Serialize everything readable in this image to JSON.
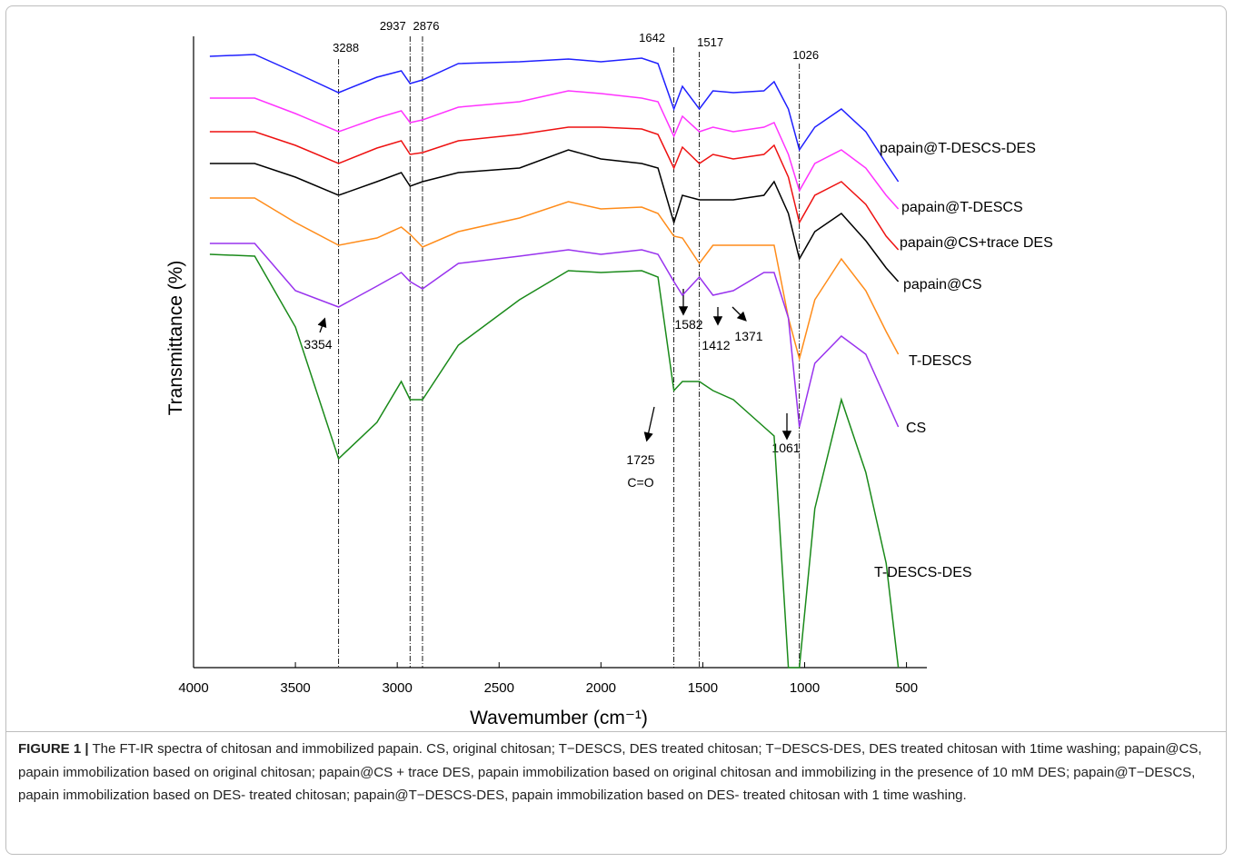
{
  "chart_data": {
    "type": "line",
    "title": null,
    "x_label": "Wavemumber (cm⁻¹)",
    "y_label": "Transmittance (%)",
    "xlim": [
      4000,
      400
    ],
    "ylim": [
      0,
      700
    ],
    "xticks": [
      4000,
      3500,
      3000,
      2500,
      2000,
      1500,
      1000,
      500
    ],
    "x": [
      3920,
      3700,
      3500,
      3288,
      3100,
      2980,
      2937,
      2876,
      2700,
      2400,
      2160,
      2000,
      1800,
      1720,
      1642,
      1600,
      1517,
      1450,
      1350,
      1200,
      1150,
      1080,
      1026,
      950,
      820,
      700,
      600,
      540
    ],
    "series": [
      {
        "name": "papain@T-DESCS-DES",
        "color": "#2020ff",
        "values": [
          673,
          675,
          655,
          633,
          650,
          657,
          643,
          647,
          665,
          667,
          670,
          667,
          671,
          665,
          615,
          640,
          615,
          635,
          633,
          635,
          645,
          615,
          570,
          595,
          615,
          590,
          555,
          535
        ]
      },
      {
        "name": "papain@T-DESCS",
        "color": "#ff33ff",
        "values": [
          627,
          627,
          610,
          590,
          605,
          613,
          600,
          603,
          617,
          623,
          635,
          632,
          627,
          623,
          585,
          607,
          590,
          595,
          590,
          595,
          600,
          565,
          525,
          555,
          570,
          550,
          520,
          505
        ]
      },
      {
        "name": "papain@CS+trace DES",
        "color": "#ee1111",
        "values": [
          590,
          590,
          575,
          555,
          572,
          580,
          565,
          567,
          580,
          587,
          595,
          595,
          593,
          587,
          550,
          573,
          555,
          565,
          560,
          565,
          575,
          540,
          490,
          520,
          535,
          510,
          475,
          460
        ]
      },
      {
        "name": "papain@CS",
        "color": "#000000",
        "values": [
          555,
          555,
          540,
          520,
          535,
          545,
          530,
          535,
          545,
          550,
          570,
          560,
          555,
          550,
          490,
          520,
          515,
          515,
          515,
          520,
          535,
          500,
          450,
          480,
          500,
          470,
          440,
          425
        ]
      },
      {
        "name": "T-DESCS",
        "color": "#ff8c1a",
        "values": [
          517,
          517,
          490,
          465,
          473,
          485,
          477,
          463,
          480,
          495,
          513,
          505,
          507,
          500,
          475,
          473,
          445,
          465,
          465,
          465,
          465,
          385,
          340,
          405,
          450,
          415,
          370,
          345
        ]
      },
      {
        "name": "CS",
        "color": "#9933ee",
        "values": [
          467,
          467,
          415,
          397,
          420,
          435,
          425,
          417,
          445,
          453,
          460,
          455,
          460,
          455,
          425,
          410,
          430,
          410,
          415,
          435,
          435,
          385,
          265,
          335,
          365,
          345,
          295,
          265
        ]
      },
      {
        "name": "T-DESCS-DES",
        "color": "#1a8a1a",
        "values": [
          455,
          453,
          375,
          230,
          270,
          315,
          295,
          295,
          355,
          405,
          437,
          435,
          437,
          430,
          305,
          315,
          315,
          305,
          295,
          265,
          255,
          0,
          0,
          175,
          295,
          215,
          115,
          0
        ]
      }
    ],
    "reference_lines": [
      3288,
      2937,
      2876,
      1642,
      1517,
      1026
    ],
    "annotations": [
      "3354",
      "1582",
      "1412",
      "1371",
      "1061",
      "1725",
      "C=O"
    ]
  },
  "caption": {
    "label": "FIGURE 1 |",
    "text": " The FT-IR spectra of chitosan and immobilized papain. CS, original chitosan; T−DESCS, DES treated chitosan; T−DESCS-DES, DES treated chitosan with 1time washing; papain@CS, papain immobilization based on original chitosan; papain@CS + trace DES, papain immobilization based on original chitosan and immobilizing in the presence of 10 mM DES; papain@T−DESCS, papain immobilization based on DES- treated chitosan; papain@T−DESCS-DES, papain immobilization based on DES- treated chitosan with 1 time washing."
  }
}
